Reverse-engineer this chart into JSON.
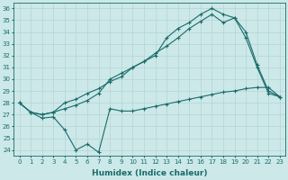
{
  "xlabel": "Humidex (Indice chaleur)",
  "xlim": [
    -0.5,
    23.5
  ],
  "ylim": [
    23.5,
    36.5
  ],
  "yticks": [
    24,
    25,
    26,
    27,
    28,
    29,
    30,
    31,
    32,
    33,
    34,
    35,
    36
  ],
  "xticks": [
    0,
    1,
    2,
    3,
    4,
    5,
    6,
    7,
    8,
    9,
    10,
    11,
    12,
    13,
    14,
    15,
    16,
    17,
    18,
    19,
    20,
    21,
    22,
    23
  ],
  "bg_color": "#cce8e8",
  "line_color": "#1a6b6b",
  "grid_color": "#b8d8d8",
  "line1_x": [
    0,
    1,
    2,
    3,
    4,
    5,
    6,
    7,
    8,
    9,
    10,
    11,
    12,
    13,
    14,
    15,
    16,
    17,
    18,
    19,
    20,
    21,
    22,
    23
  ],
  "line1_y": [
    28.0,
    27.2,
    26.7,
    26.8,
    25.7,
    24.0,
    24.5,
    23.8,
    27.5,
    27.3,
    27.3,
    27.5,
    27.7,
    27.9,
    28.1,
    28.3,
    28.5,
    28.7,
    28.9,
    29.0,
    29.2,
    29.3,
    29.3,
    28.5
  ],
  "line2_x": [
    0,
    1,
    2,
    3,
    4,
    5,
    6,
    7,
    8,
    9,
    10,
    11,
    12,
    13,
    14,
    15,
    16,
    17,
    18,
    19,
    20,
    21,
    22,
    23
  ],
  "line2_y": [
    28.0,
    27.2,
    27.0,
    27.2,
    27.5,
    27.8,
    28.2,
    28.8,
    30.0,
    30.5,
    31.0,
    31.5,
    32.0,
    33.5,
    34.3,
    34.8,
    35.5,
    36.0,
    35.5,
    35.2,
    33.5,
    31.0,
    28.8,
    28.5
  ],
  "line3_x": [
    0,
    1,
    2,
    3,
    4,
    5,
    6,
    7,
    8,
    9,
    10,
    11,
    12,
    13,
    14,
    15,
    16,
    17,
    18,
    19,
    20,
    21,
    22,
    23
  ],
  "line3_y": [
    28.0,
    27.2,
    27.0,
    27.2,
    28.0,
    28.3,
    28.8,
    29.2,
    29.8,
    30.2,
    31.0,
    31.5,
    32.2,
    32.8,
    33.5,
    34.3,
    34.9,
    35.5,
    34.8,
    35.2,
    34.0,
    31.2,
    29.0,
    28.5
  ]
}
